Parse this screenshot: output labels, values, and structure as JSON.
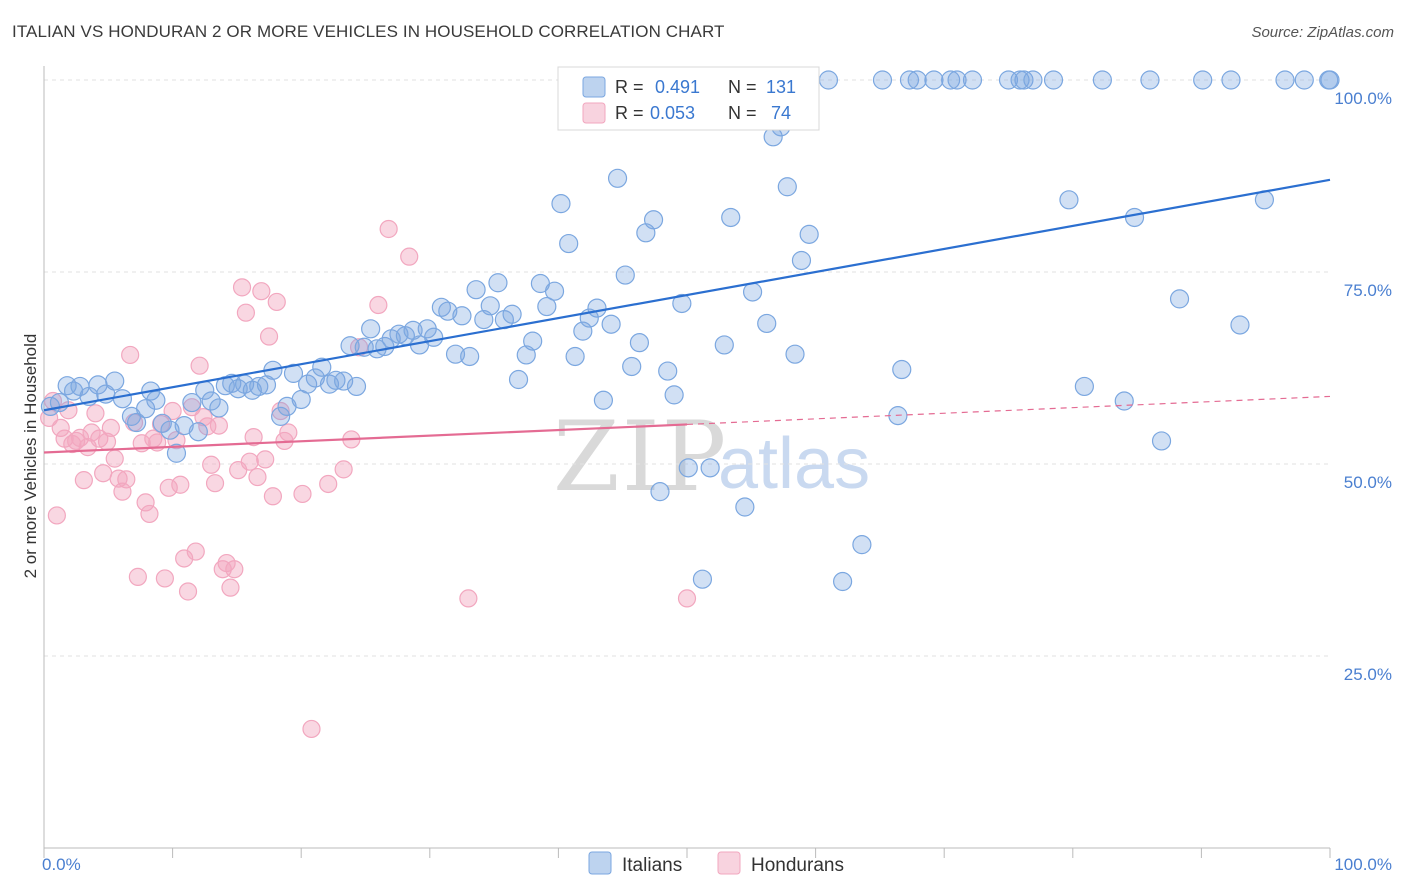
{
  "title": "ITALIAN VS HONDURAN 2 OR MORE VEHICLES IN HOUSEHOLD CORRELATION CHART",
  "source": "Source: ZipAtlas.com",
  "watermark": {
    "zip": "ZIP",
    "atlas": "atlas"
  },
  "colors": {
    "italians": "#7ba7e0",
    "italians_line": "#2b6fd0",
    "hondurans": "#f2a7bf",
    "hondurans_line": "#e46b93",
    "tick_text": "#4a7fd0"
  },
  "legend": {
    "rows": [
      {
        "r_label": "R =",
        "r_value": "0.491",
        "n_label": "N =",
        "n_value": "131"
      },
      {
        "r_label": "R =",
        "r_value": "0.053",
        "n_label": "N =",
        "n_value": "74"
      }
    ]
  },
  "chart_data": {
    "type": "scatter",
    "title": "ITALIAN VS HONDURAN 2 OR MORE VEHICLES IN HOUSEHOLD CORRELATION CHART",
    "xlabel": "",
    "ylabel": "2 or more Vehicles in Household",
    "xlim": [
      0,
      100
    ],
    "ylim": [
      0,
      100
    ],
    "x_ticks": [
      "0.0%",
      "100.0%"
    ],
    "y_ticks": [
      {
        "value": 25,
        "label": "25.0%"
      },
      {
        "value": 50,
        "label": "50.0%"
      },
      {
        "value": 75,
        "label": "75.0%"
      },
      {
        "value": 100,
        "label": "100.0%"
      }
    ],
    "grid": true,
    "legend_position": "top-center",
    "series": [
      {
        "name": "Italians",
        "r": 0.491,
        "n": 131,
        "trend": {
          "x": [
            0,
            100
          ],
          "y": [
            57.0,
            87.0
          ]
        },
        "points": [
          [
            0.5,
            57.5
          ],
          [
            1.2,
            58.0
          ],
          [
            1.8,
            60.2
          ],
          [
            2.3,
            59.5
          ],
          [
            2.8,
            60.1
          ],
          [
            3.5,
            58.8
          ],
          [
            4.2,
            60.3
          ],
          [
            4.8,
            59.1
          ],
          [
            5.5,
            60.8
          ],
          [
            6.1,
            58.5
          ],
          [
            6.8,
            56.2
          ],
          [
            7.2,
            55.4
          ],
          [
            7.9,
            57.2
          ],
          [
            8.3,
            59.5
          ],
          [
            8.7,
            58.3
          ],
          [
            9.2,
            55.3
          ],
          [
            9.8,
            54.4
          ],
          [
            10.3,
            51.4
          ],
          [
            10.9,
            55.0
          ],
          [
            11.5,
            58.0
          ],
          [
            12.0,
            54.2
          ],
          [
            12.5,
            59.6
          ],
          [
            13.0,
            58.2
          ],
          [
            13.6,
            57.3
          ],
          [
            14.1,
            60.2
          ],
          [
            14.6,
            60.5
          ],
          [
            15.1,
            59.8
          ],
          [
            15.6,
            60.4
          ],
          [
            16.2,
            59.6
          ],
          [
            16.7,
            60.1
          ],
          [
            17.3,
            60.3
          ],
          [
            17.8,
            62.2
          ],
          [
            18.4,
            56.2
          ],
          [
            18.9,
            57.5
          ],
          [
            19.4,
            61.8
          ],
          [
            20.0,
            58.4
          ],
          [
            20.5,
            60.4
          ],
          [
            21.1,
            61.2
          ],
          [
            21.6,
            62.6
          ],
          [
            22.2,
            60.4
          ],
          [
            22.7,
            60.9
          ],
          [
            23.3,
            60.8
          ],
          [
            23.8,
            65.4
          ],
          [
            24.3,
            60.1
          ],
          [
            24.9,
            65.2
          ],
          [
            25.4,
            67.6
          ],
          [
            25.9,
            65.0
          ],
          [
            26.5,
            65.3
          ],
          [
            27.0,
            66.3
          ],
          [
            27.6,
            66.9
          ],
          [
            28.1,
            66.7
          ],
          [
            28.7,
            67.4
          ],
          [
            29.2,
            65.5
          ],
          [
            29.8,
            67.6
          ],
          [
            30.3,
            66.5
          ],
          [
            30.9,
            70.4
          ],
          [
            31.4,
            69.9
          ],
          [
            32.0,
            64.3
          ],
          [
            32.5,
            69.3
          ],
          [
            33.1,
            64.0
          ],
          [
            33.6,
            72.7
          ],
          [
            34.2,
            68.8
          ],
          [
            34.7,
            70.6
          ],
          [
            35.3,
            73.6
          ],
          [
            35.8,
            68.8
          ],
          [
            36.4,
            69.5
          ],
          [
            36.9,
            61.0
          ],
          [
            37.5,
            64.2
          ],
          [
            38.0,
            66.0
          ],
          [
            38.6,
            73.5
          ],
          [
            39.1,
            70.5
          ],
          [
            39.7,
            72.5
          ],
          [
            40.2,
            83.9
          ],
          [
            40.8,
            78.7
          ],
          [
            41.3,
            64.0
          ],
          [
            41.9,
            67.3
          ],
          [
            42.4,
            69.0
          ],
          [
            43.0,
            70.3
          ],
          [
            43.5,
            58.3
          ],
          [
            44.1,
            68.2
          ],
          [
            44.6,
            87.2
          ],
          [
            45.2,
            74.6
          ],
          [
            45.7,
            62.7
          ],
          [
            46.3,
            65.8
          ],
          [
            46.8,
            80.1
          ],
          [
            47.4,
            81.8
          ],
          [
            47.9,
            46.4
          ],
          [
            48.5,
            62.1
          ],
          [
            49.0,
            59.0
          ],
          [
            49.6,
            70.9
          ],
          [
            50.1,
            49.5
          ],
          [
            50.7,
            100.0
          ],
          [
            51.2,
            35.0
          ],
          [
            51.8,
            49.5
          ],
          [
            52.3,
            100.0
          ],
          [
            52.9,
            65.5
          ],
          [
            53.4,
            82.1
          ],
          [
            54.0,
            100.0
          ],
          [
            54.5,
            44.4
          ],
          [
            55.1,
            72.4
          ],
          [
            55.6,
            100.0
          ],
          [
            56.2,
            68.3
          ],
          [
            56.7,
            92.6
          ],
          [
            57.3,
            93.9
          ],
          [
            57.8,
            86.1
          ],
          [
            58.4,
            64.3
          ],
          [
            58.9,
            76.5
          ],
          [
            59.5,
            79.9
          ],
          [
            61.0,
            100.0
          ],
          [
            62.1,
            34.7
          ],
          [
            63.6,
            39.5
          ],
          [
            65.2,
            100.0
          ],
          [
            66.4,
            56.3
          ],
          [
            66.7,
            62.3
          ],
          [
            67.3,
            100.0
          ],
          [
            67.9,
            100.0
          ],
          [
            69.2,
            100.0
          ],
          [
            70.5,
            100.0
          ],
          [
            71.0,
            100.0
          ],
          [
            72.2,
            100.0
          ],
          [
            75.0,
            100.0
          ],
          [
            75.9,
            100.0
          ],
          [
            76.2,
            100.0
          ],
          [
            76.9,
            100.0
          ],
          [
            78.5,
            100.0
          ],
          [
            79.7,
            84.4
          ],
          [
            80.9,
            60.1
          ],
          [
            82.3,
            100.0
          ],
          [
            84.0,
            58.2
          ],
          [
            84.8,
            82.1
          ],
          [
            86.0,
            100.0
          ],
          [
            86.9,
            53.0
          ],
          [
            88.3,
            71.5
          ],
          [
            90.1,
            100.0
          ],
          [
            92.3,
            100.0
          ],
          [
            93.0,
            68.1
          ],
          [
            94.9,
            84.4
          ],
          [
            96.5,
            100.0
          ],
          [
            98.0,
            100.0
          ],
          [
            99.9,
            100.0
          ],
          [
            100.0,
            100.0
          ]
        ]
      },
      {
        "name": "Hondurans",
        "r": 0.053,
        "n": 74,
        "trend": {
          "x": [
            0,
            100
          ],
          "y": [
            51.5,
            58.8
          ]
        },
        "trend_solid_until": 50,
        "points": [
          [
            0.4,
            56.0
          ],
          [
            0.7,
            58.2
          ],
          [
            1.0,
            43.3
          ],
          [
            1.3,
            54.7
          ],
          [
            1.6,
            53.3
          ],
          [
            1.9,
            57.0
          ],
          [
            2.2,
            52.6
          ],
          [
            2.5,
            53.0
          ],
          [
            2.8,
            53.4
          ],
          [
            3.1,
            47.9
          ],
          [
            3.4,
            52.2
          ],
          [
            3.7,
            54.1
          ],
          [
            4.0,
            56.6
          ],
          [
            4.3,
            53.3
          ],
          [
            4.6,
            48.8
          ],
          [
            4.9,
            52.9
          ],
          [
            5.2,
            54.7
          ],
          [
            5.5,
            50.7
          ],
          [
            5.8,
            48.1
          ],
          [
            6.1,
            46.4
          ],
          [
            6.4,
            48.0
          ],
          [
            6.7,
            64.2
          ],
          [
            7.0,
            55.4
          ],
          [
            7.3,
            35.3
          ],
          [
            7.6,
            52.7
          ],
          [
            7.9,
            45.0
          ],
          [
            8.2,
            43.5
          ],
          [
            8.5,
            53.3
          ],
          [
            8.8,
            52.8
          ],
          [
            9.1,
            55.2
          ],
          [
            9.4,
            35.1
          ],
          [
            9.7,
            46.9
          ],
          [
            10.0,
            56.9
          ],
          [
            10.3,
            53.1
          ],
          [
            10.6,
            47.3
          ],
          [
            10.9,
            37.7
          ],
          [
            11.2,
            33.4
          ],
          [
            11.5,
            57.4
          ],
          [
            11.8,
            38.6
          ],
          [
            12.1,
            62.8
          ],
          [
            12.4,
            56.1
          ],
          [
            12.7,
            54.9
          ],
          [
            13.0,
            49.9
          ],
          [
            13.3,
            47.5
          ],
          [
            13.6,
            55.0
          ],
          [
            13.9,
            36.3
          ],
          [
            14.2,
            37.1
          ],
          [
            14.5,
            33.9
          ],
          [
            14.8,
            36.3
          ],
          [
            15.1,
            49.2
          ],
          [
            15.4,
            73.0
          ],
          [
            15.7,
            69.7
          ],
          [
            16.0,
            50.3
          ],
          [
            16.3,
            53.5
          ],
          [
            16.6,
            48.3
          ],
          [
            16.9,
            72.5
          ],
          [
            17.2,
            50.6
          ],
          [
            17.5,
            66.6
          ],
          [
            17.8,
            45.8
          ],
          [
            18.1,
            71.1
          ],
          [
            18.4,
            56.9
          ],
          [
            18.7,
            53.0
          ],
          [
            19.0,
            54.1
          ],
          [
            20.1,
            46.1
          ],
          [
            20.8,
            15.5
          ],
          [
            22.1,
            47.4
          ],
          [
            23.3,
            49.3
          ],
          [
            23.9,
            53.2
          ],
          [
            24.5,
            65.2
          ],
          [
            26.0,
            70.7
          ],
          [
            26.8,
            80.6
          ],
          [
            28.4,
            77.0
          ],
          [
            33.0,
            32.5
          ],
          [
            50.0,
            32.5
          ]
        ]
      }
    ]
  },
  "bottom_legend": {
    "items": [
      "Italians",
      "Hondurans"
    ]
  }
}
